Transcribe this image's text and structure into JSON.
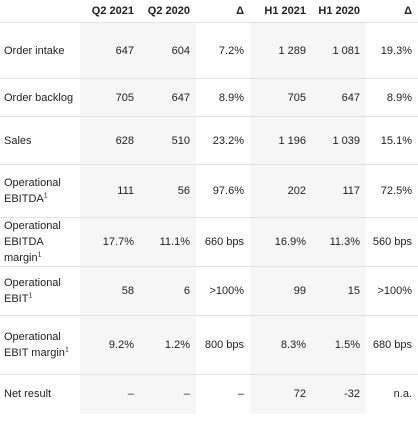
{
  "columns": [
    "",
    "Q2 2021",
    "Q2 2020",
    "Δ",
    "H1 2021",
    "H1 2020",
    "Δ"
  ],
  "rows": [
    {
      "label": "Order intake",
      "sup": "",
      "values": [
        "647",
        "604",
        "7.2%",
        "1 289",
        "1 081",
        "19.3%"
      ]
    },
    {
      "label": "Order backlog",
      "sup": "",
      "values": [
        "705",
        "647",
        "8.9%",
        "705",
        "647",
        "8.9%"
      ]
    },
    {
      "label": "Sales",
      "sup": "",
      "values": [
        "628",
        "510",
        "23.2%",
        "1 196",
        "1 039",
        "15.1%"
      ]
    },
    {
      "label": "Operational EBITDA",
      "sup": "1",
      "values": [
        "111",
        "56",
        "97.6%",
        "202",
        "117",
        "72.5%"
      ]
    },
    {
      "label": "Operational EBITDA margin",
      "sup": "1",
      "values": [
        "17.7%",
        "11.1%",
        "660 bps",
        "16.9%",
        "11.3%",
        "560 bps"
      ]
    },
    {
      "label": "Operational EBIT",
      "sup": "1",
      "values": [
        "58",
        "6",
        ">100%",
        "99",
        "15",
        ">100%"
      ]
    },
    {
      "label": "Operational EBIT margin",
      "sup": "1",
      "values": [
        "9.2%",
        "1.2%",
        "800 bps",
        "8.3%",
        "1.5%",
        "680 bps"
      ]
    },
    {
      "label": "Net result",
      "sup": "",
      "values": [
        "–",
        "–",
        "–",
        "72",
        "-32",
        "n.a."
      ]
    }
  ]
}
